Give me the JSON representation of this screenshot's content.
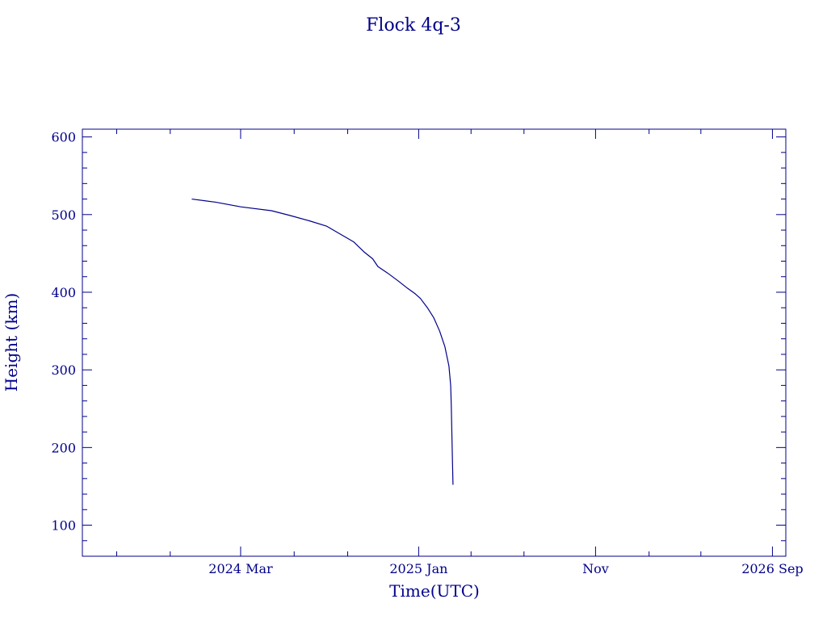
{
  "chart_data": {
    "type": "line",
    "title": "Flock 4q-3",
    "xlabel": "Time(UTC)",
    "ylabel": "Height (km)",
    "color": "#00008b",
    "background": "#ffffff",
    "grid": false,
    "x_scale": "time",
    "xlim": [
      "2023-06-03",
      "2026-09-24"
    ],
    "ylim": [
      60,
      610
    ],
    "x_ticks": [
      {
        "date": "2024-03-01",
        "label": "2024 Mar"
      },
      {
        "date": "2025-01-01",
        "label": "2025 Jan"
      },
      {
        "date": "2025-11-01",
        "label": "Nov"
      },
      {
        "date": "2026-09-01",
        "label": "2026 Sep"
      }
    ],
    "x_minor_ticks": [
      "2023-08-01",
      "2023-11-01",
      "2024-06-01",
      "2024-09-01",
      "2025-04-01",
      "2025-07-01",
      "2026-02-01",
      "2026-05-01"
    ],
    "y_ticks": [
      100,
      200,
      300,
      400,
      500,
      600
    ],
    "y_minor_step": 20,
    "series": [
      {
        "points": [
          {
            "x": "2023-12-08",
            "y": 520
          },
          {
            "x": "2024-01-18",
            "y": 516
          },
          {
            "x": "2024-03-01",
            "y": 510
          },
          {
            "x": "2024-04-23",
            "y": 505
          },
          {
            "x": "2024-05-24",
            "y": 499
          },
          {
            "x": "2024-06-27",
            "y": 492
          },
          {
            "x": "2024-07-27",
            "y": 485
          },
          {
            "x": "2024-08-19",
            "y": 475
          },
          {
            "x": "2024-09-11",
            "y": 465
          },
          {
            "x": "2024-09-29",
            "y": 452
          },
          {
            "x": "2024-10-14",
            "y": 443
          },
          {
            "x": "2024-10-23",
            "y": 433
          },
          {
            "x": "2024-11-08",
            "y": 425
          },
          {
            "x": "2024-11-26",
            "y": 415
          },
          {
            "x": "2024-12-13",
            "y": 405
          },
          {
            "x": "2024-12-26",
            "y": 398
          },
          {
            "x": "2025-01-04",
            "y": 392
          },
          {
            "x": "2025-01-16",
            "y": 380
          },
          {
            "x": "2025-01-27",
            "y": 367
          },
          {
            "x": "2025-02-06",
            "y": 350
          },
          {
            "x": "2025-02-15",
            "y": 330
          },
          {
            "x": "2025-02-22",
            "y": 305
          },
          {
            "x": "2025-02-25",
            "y": 280
          },
          {
            "x": "2025-02-26",
            "y": 255
          },
          {
            "x": "2025-02-27",
            "y": 220
          },
          {
            "x": "2025-02-28",
            "y": 185
          },
          {
            "x": "2025-03-01",
            "y": 152
          }
        ]
      }
    ]
  }
}
